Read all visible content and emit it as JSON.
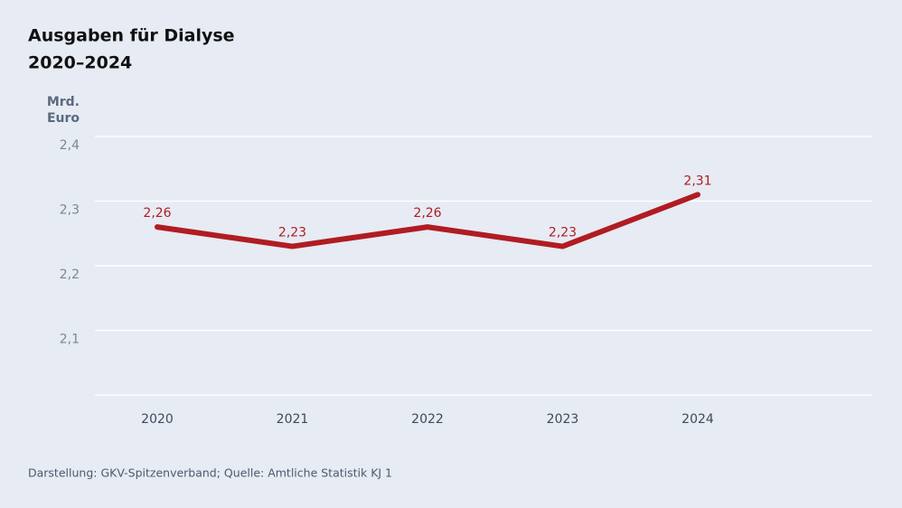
{
  "chart_data": {
    "type": "line",
    "title": "Ausgaben für Dialyse",
    "subtitle": "2020–2024",
    "y_label": [
      "Mrd.",
      "Euro"
    ],
    "categories": [
      "2020",
      "2021",
      "2022",
      "2023",
      "2024"
    ],
    "series": [
      {
        "color": "#b01c22",
        "values": [
          2.26,
          2.23,
          2.26,
          2.23,
          2.31
        ],
        "value_labels": [
          "2,26",
          "2,23",
          "2,26",
          "2,23",
          "2,31"
        ]
      }
    ],
    "ylim": [
      2.0,
      2.4
    ],
    "yticks": [
      {
        "value": 2.1,
        "label": "2,1"
      },
      {
        "value": 2.2,
        "label": "2,2"
      },
      {
        "value": 2.3,
        "label": "2,3"
      },
      {
        "value": 2.4,
        "label": "2,4"
      }
    ],
    "grid": true,
    "source": "Darstellung: GKV-Spitzenverband; Quelle: Amtliche Statistik KJ 1"
  }
}
